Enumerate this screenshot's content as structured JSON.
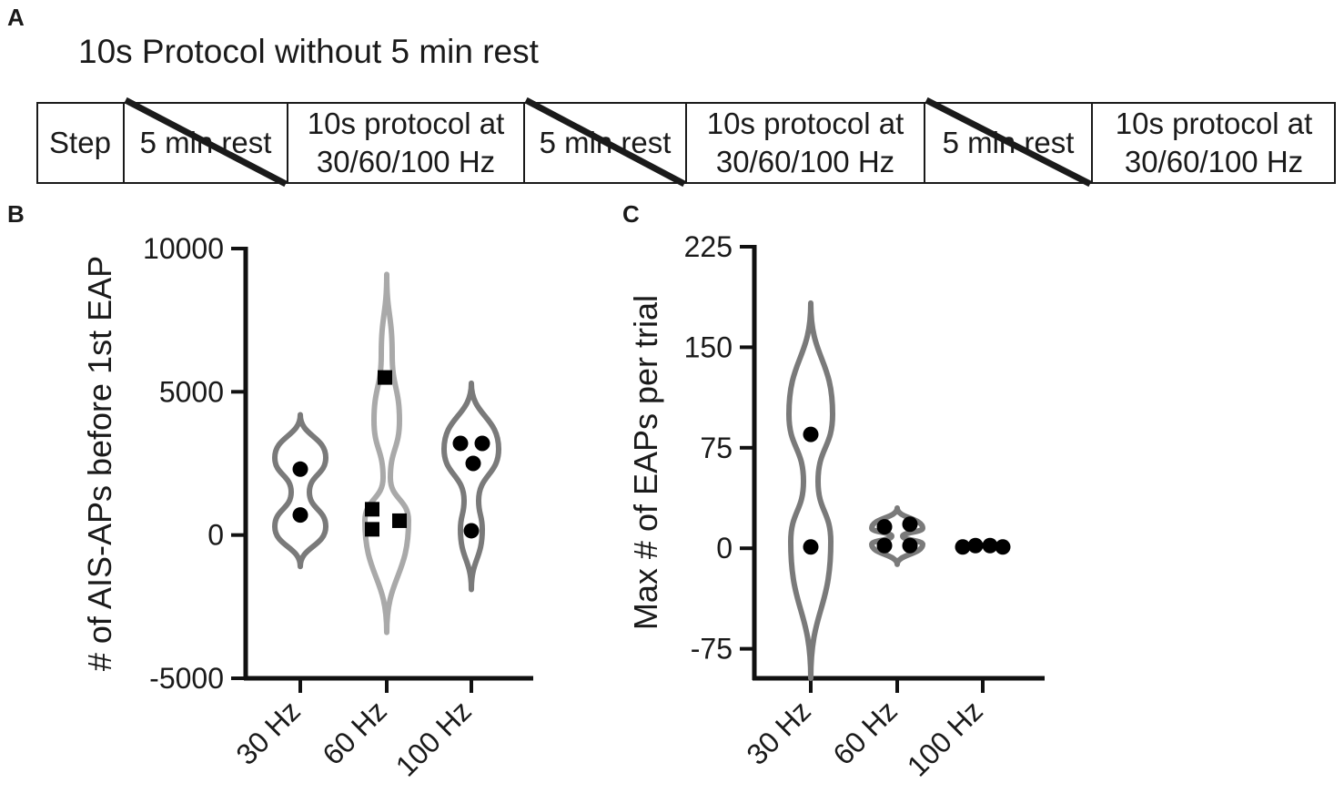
{
  "panels": {
    "a": {
      "letter": "A",
      "title": "10s Protocol without 5 min rest"
    },
    "b": {
      "letter": "B"
    },
    "c": {
      "letter": "C"
    }
  },
  "protocol_cells": [
    {
      "label": "Step",
      "crossed": false
    },
    {
      "label": "5 min rest",
      "crossed": true
    },
    {
      "label": "10s protocol at\n30/60/100 Hz",
      "crossed": false
    },
    {
      "label": "5 min rest",
      "crossed": true
    },
    {
      "label": "10s protocol at\n30/60/100 Hz",
      "crossed": false
    },
    {
      "label": "5 min rest",
      "crossed": true
    },
    {
      "label": "10s protocol at\n30/60/100 Hz",
      "crossed": false
    }
  ],
  "chart_data": [
    {
      "type": "violin",
      "ylabel": "# of AIS-APs before 1st EAP",
      "ylim": [
        -5000,
        10000
      ],
      "yticks": [
        -5000,
        0,
        5000,
        10000
      ],
      "categories": [
        "30 Hz",
        "60 Hz",
        "100 Hz"
      ],
      "colors": [
        "#7a7a7a",
        "#a9a9a9",
        "#7a7a7a"
      ],
      "points": [
        {
          "category": "30 Hz",
          "marker": "circle",
          "values": [
            2300,
            700
          ]
        },
        {
          "category": "60 Hz",
          "marker": "square",
          "values": [
            5500,
            900,
            500,
            200
          ]
        },
        {
          "category": "100 Hz",
          "marker": "circle",
          "values": [
            3200,
            3200,
            2500,
            150
          ]
        }
      ],
      "violin_range": [
        [
          -1100,
          4200
        ],
        [
          -3400,
          9100
        ],
        [
          -1900,
          5300
        ]
      ]
    },
    {
      "type": "violin",
      "ylabel": "Max # of EAPs per trial",
      "ylim": [
        -97,
        225
      ],
      "yticks": [
        -75,
        0,
        75,
        150,
        225
      ],
      "categories": [
        "30 Hz",
        "60 Hz",
        "100 Hz"
      ],
      "colors": [
        "#7a7a7a",
        "#7a7a7a",
        "#7a7a7a"
      ],
      "points": [
        {
          "category": "30 Hz",
          "marker": "circle",
          "values": [
            85,
            1
          ]
        },
        {
          "category": "60 Hz",
          "marker": "circle",
          "values": [
            16,
            18,
            2,
            2
          ]
        },
        {
          "category": "100 Hz",
          "marker": "circle",
          "values": [
            1,
            2,
            2,
            1
          ]
        }
      ],
      "violin_range": [
        [
          -97,
          183
        ],
        [
          -12,
          30
        ],
        [
          null,
          null
        ]
      ]
    }
  ]
}
